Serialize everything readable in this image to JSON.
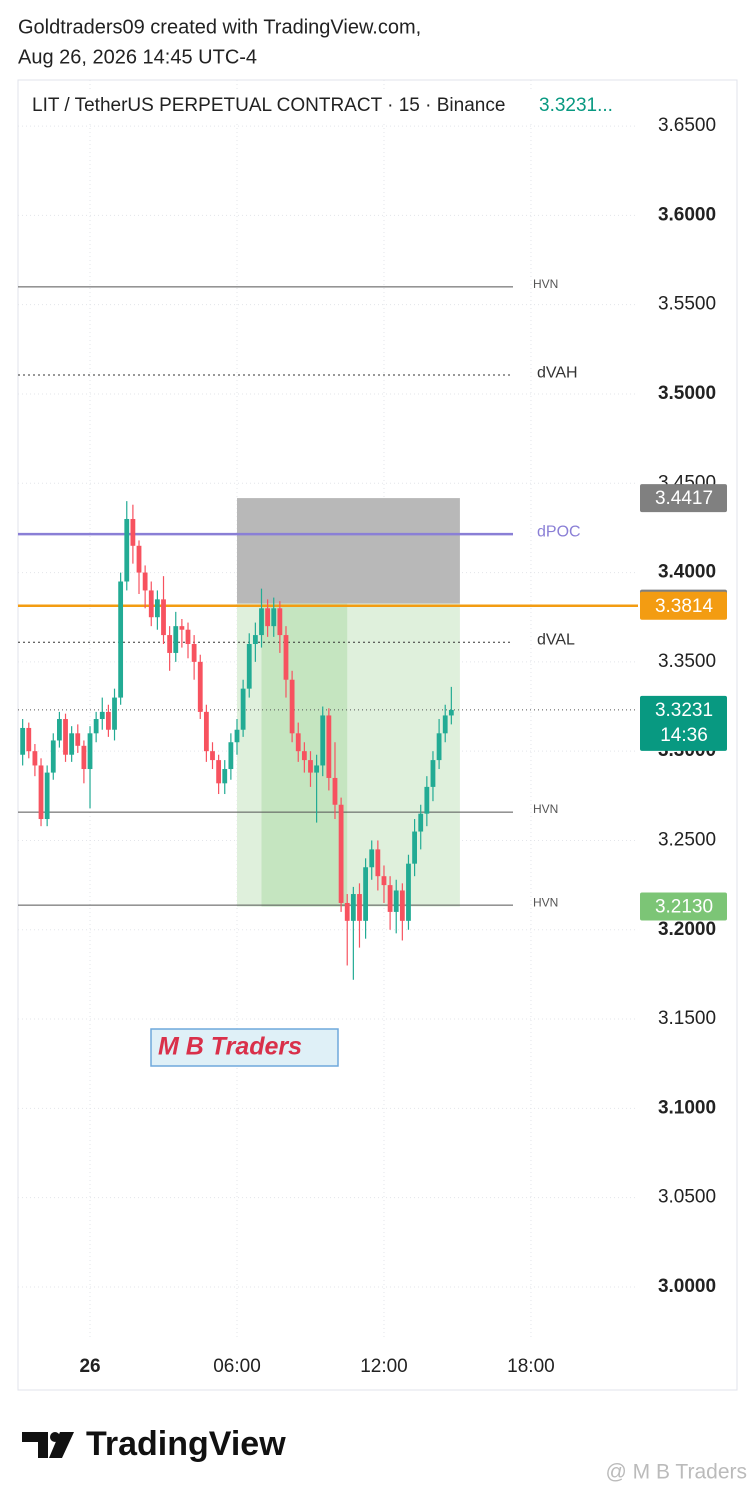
{
  "header": {
    "line1": "Goldtraders09 created with TradingView.com,",
    "line2": "Aug 26, 2026 14:45 UTC-4"
  },
  "chart_data": {
    "type": "candlestick",
    "title": "LIT / TetherUS PERPETUAL CONTRACT · 15 · Binance",
    "title_price": "3.3231...",
    "up_color": "#22ab94",
    "down_color": "#f7525f",
    "xlim": [
      -2.94,
      22.37
    ],
    "xticks": [
      {
        "value": 0,
        "label": "26"
      },
      {
        "value": 6,
        "label": "06:00"
      },
      {
        "value": 12,
        "label": "12:00"
      },
      {
        "value": 18,
        "label": "18:00"
      }
    ],
    "ylim": [
      2.9703,
      3.6758
    ],
    "yticks": [
      {
        "value": 3.0,
        "label": "3.0000"
      },
      {
        "value": 3.05,
        "label": "3.0500"
      },
      {
        "value": 3.1,
        "label": "3.1000"
      },
      {
        "value": 3.15,
        "label": "3.1500"
      },
      {
        "value": 3.2,
        "label": "3.2000"
      },
      {
        "value": 3.25,
        "label": "3.2500"
      },
      {
        "value": 3.3,
        "label": "3.3000"
      },
      {
        "value": 3.35,
        "label": "3.3500"
      },
      {
        "value": 3.4,
        "label": "3.4000"
      },
      {
        "value": 3.45,
        "label": "3.4500"
      },
      {
        "value": 3.5,
        "label": "3.5000"
      },
      {
        "value": 3.55,
        "label": "3.5500"
      },
      {
        "value": 3.6,
        "label": "3.6000"
      },
      {
        "value": 3.65,
        "label": "3.6500"
      }
    ],
    "grid": true,
    "x": [
      -2.75,
      -2.5,
      -2.25,
      -2,
      -1.75,
      -1.5,
      -1.25,
      -1,
      -0.75,
      -0.5,
      -0.25,
      0,
      0.25,
      0.5,
      0.75,
      1,
      1.25,
      1.5,
      1.75,
      2,
      2.25,
      2.5,
      2.75,
      3,
      3.25,
      3.5,
      3.75,
      4,
      4.25,
      4.5,
      4.75,
      5,
      5.25,
      5.5,
      5.75,
      6,
      6.25,
      6.5,
      6.75,
      7,
      7.25,
      7.5,
      7.75,
      8,
      8.25,
      8.5,
      8.75,
      9,
      9.25,
      9.5,
      9.75,
      10,
      10.25,
      10.5,
      10.75,
      11,
      11.25,
      11.5,
      11.75,
      12,
      12.25,
      12.5,
      12.75,
      13,
      13.25,
      13.5,
      13.75,
      14,
      14.25,
      14.5,
      14.75
    ],
    "open": [
      3.298,
      3.313,
      3.3,
      3.292,
      3.262,
      3.288,
      3.306,
      3.318,
      3.298,
      3.31,
      3.303,
      3.29,
      3.31,
      3.318,
      3.322,
      3.312,
      3.33,
      3.395,
      3.43,
      3.415,
      3.4,
      3.39,
      3.375,
      3.385,
      3.365,
      3.355,
      3.37,
      3.368,
      3.36,
      3.35,
      3.322,
      3.3,
      3.295,
      3.282,
      3.29,
      3.305,
      3.312,
      3.335,
      3.36,
      3.365,
      3.38,
      3.37,
      3.38,
      3.365,
      3.34,
      3.31,
      3.3,
      3.295,
      3.288,
      3.292,
      3.32,
      3.285,
      3.27,
      3.215,
      3.205,
      3.22,
      3.205,
      3.235,
      3.245,
      3.23,
      3.225,
      3.21,
      3.222,
      3.205,
      3.237,
      3.255,
      3.265,
      3.28,
      3.295,
      3.31,
      3.32
    ],
    "high": [
      3.318,
      3.316,
      3.304,
      3.296,
      3.292,
      3.31,
      3.322,
      3.321,
      3.314,
      3.315,
      3.306,
      3.314,
      3.322,
      3.33,
      3.326,
      3.335,
      3.4,
      3.44,
      3.438,
      3.418,
      3.404,
      3.395,
      3.39,
      3.398,
      3.37,
      3.378,
      3.374,
      3.372,
      3.365,
      3.354,
      3.326,
      3.305,
      3.298,
      3.295,
      3.31,
      3.318,
      3.34,
      3.366,
      3.372,
      3.391,
      3.385,
      3.386,
      3.384,
      3.37,
      3.345,
      3.316,
      3.305,
      3.3,
      3.298,
      3.325,
      3.324,
      3.305,
      3.274,
      3.22,
      3.224,
      3.226,
      3.24,
      3.25,
      3.25,
      3.236,
      3.23,
      3.228,
      3.226,
      3.242,
      3.262,
      3.27,
      3.286,
      3.3,
      3.318,
      3.326,
      3.336
    ],
    "low": [
      3.292,
      3.296,
      3.286,
      3.258,
      3.258,
      3.284,
      3.302,
      3.294,
      3.294,
      3.299,
      3.282,
      3.268,
      3.305,
      3.312,
      3.308,
      3.306,
      3.326,
      3.39,
      3.405,
      3.388,
      3.38,
      3.37,
      3.368,
      3.36,
      3.345,
      3.35,
      3.358,
      3.352,
      3.34,
      3.318,
      3.294,
      3.29,
      3.276,
      3.276,
      3.284,
      3.298,
      3.308,
      3.33,
      3.35,
      3.358,
      3.364,
      3.364,
      3.355,
      3.33,
      3.305,
      3.294,
      3.288,
      3.28,
      3.26,
      3.286,
      3.278,
      3.262,
      3.21,
      3.18,
      3.172,
      3.19,
      3.195,
      3.228,
      3.222,
      3.215,
      3.2,
      3.198,
      3.194,
      3.2,
      3.23,
      3.245,
      3.258,
      3.272,
      3.29,
      3.305,
      3.315
    ],
    "close": [
      3.313,
      3.3,
      3.292,
      3.262,
      3.288,
      3.306,
      3.318,
      3.298,
      3.31,
      3.303,
      3.29,
      3.31,
      3.318,
      3.322,
      3.312,
      3.33,
      3.395,
      3.43,
      3.415,
      3.4,
      3.39,
      3.375,
      3.385,
      3.365,
      3.355,
      3.37,
      3.368,
      3.36,
      3.35,
      3.322,
      3.3,
      3.295,
      3.282,
      3.29,
      3.305,
      3.312,
      3.335,
      3.36,
      3.365,
      3.38,
      3.37,
      3.38,
      3.365,
      3.34,
      3.31,
      3.3,
      3.295,
      3.288,
      3.292,
      3.32,
      3.285,
      3.27,
      3.215,
      3.205,
      3.22,
      3.205,
      3.235,
      3.245,
      3.23,
      3.225,
      3.21,
      3.222,
      3.205,
      3.237,
      3.255,
      3.265,
      3.28,
      3.295,
      3.31,
      3.32,
      3.3231
    ],
    "levels": [
      {
        "label": "HVN",
        "value": 3.56,
        "color": "#555555",
        "style": "solid"
      },
      {
        "label": "dVAH",
        "value": 3.5106,
        "color": "#333333",
        "style": "dotted"
      },
      {
        "label": "dPOC",
        "value": 3.4215,
        "color": "#8a7fd6",
        "style": "solid"
      },
      {
        "label": "dVAL",
        "value": 3.361,
        "color": "#333333",
        "style": "dotted"
      },
      {
        "label": "HVN",
        "value": 3.2659,
        "color": "#555555",
        "style": "solid"
      },
      {
        "label": "HVN",
        "value": 3.2138,
        "color": "#555555",
        "style": "solid"
      }
    ],
    "orange_line": {
      "value": 3.3814,
      "color": "#f39c12"
    },
    "position_tool": {
      "x_range": [
        6.0,
        15.1
      ],
      "inner_x_range": [
        7.0,
        10.5
      ],
      "stop": 3.4417,
      "entry": 3.3826,
      "target": {
        "value": 3.213,
        "label": "3.2130"
      }
    },
    "last_price": 3.3231,
    "countdown": "14:36",
    "annotation": "M B Traders"
  },
  "footer": {
    "brand": "TradingView",
    "watermark": "@ M B Traders"
  }
}
